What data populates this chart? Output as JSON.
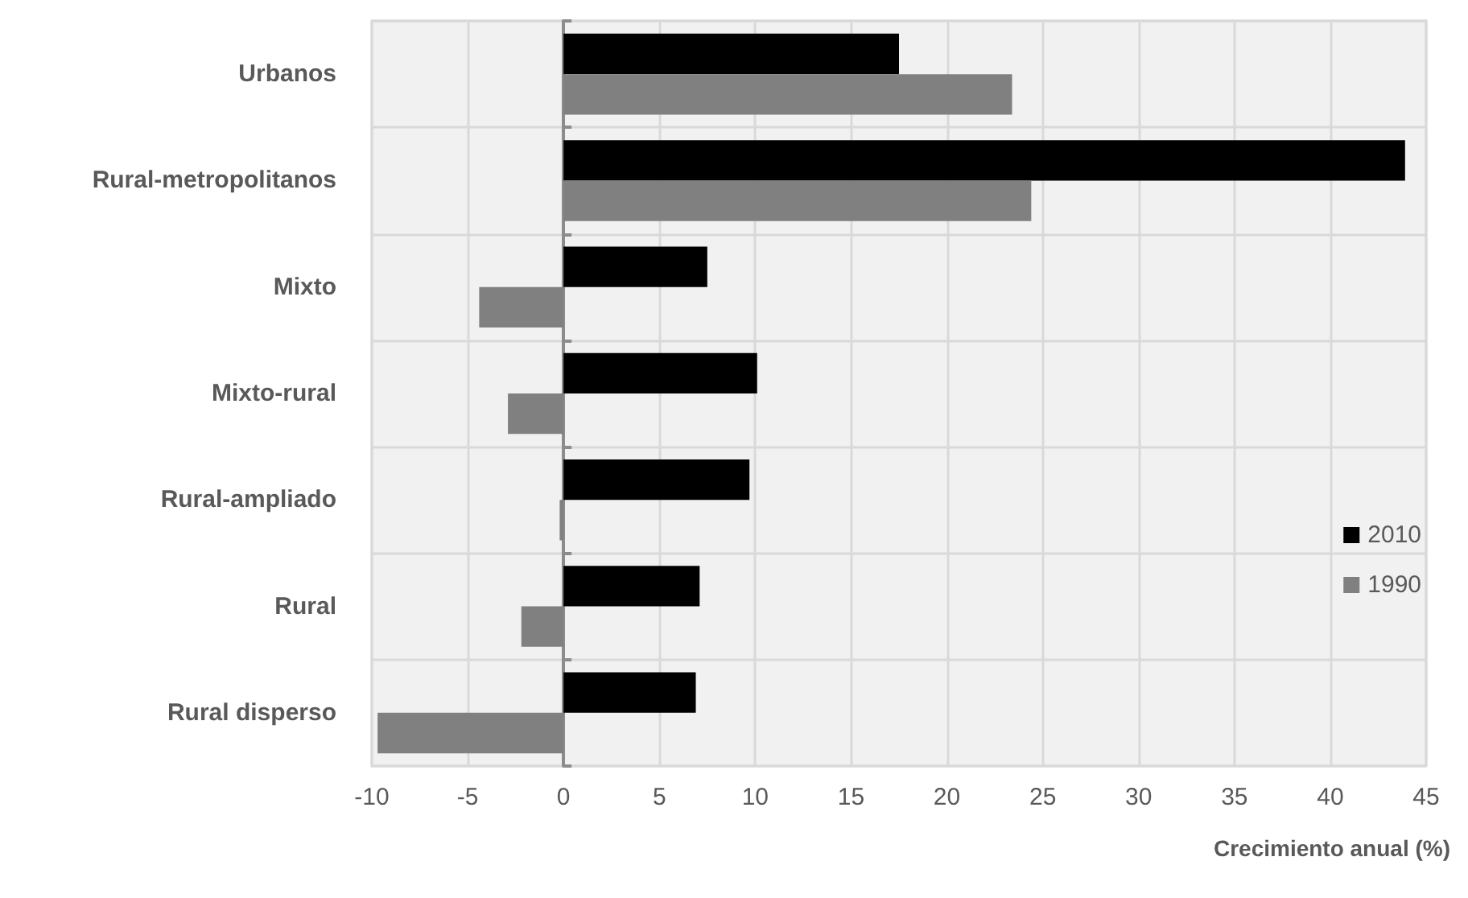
{
  "chart_data": {
    "type": "bar",
    "orientation": "horizontal",
    "xlabel": "Crecimiento anual (%)",
    "categories": [
      "Urbanos",
      "Rural-metropolitanos",
      "Mixto",
      "Mixto-rural",
      "Rural-ampliado",
      "Rural",
      "Rural disperso"
    ],
    "series": [
      {
        "name": "2010",
        "color": "#000000",
        "values": [
          17.5,
          43.9,
          7.5,
          10.1,
          9.7,
          7.1,
          6.9
        ]
      },
      {
        "name": "1990",
        "color": "#808080",
        "values": [
          23.4,
          24.4,
          -4.4,
          -2.9,
          -0.2,
          -2.2,
          -9.7
        ]
      }
    ],
    "xlim": [
      -10,
      45
    ],
    "xticks": [
      -10,
      -5,
      0,
      5,
      10,
      15,
      20,
      25,
      30,
      35,
      40,
      45
    ],
    "grid": true,
    "legend": "right"
  }
}
